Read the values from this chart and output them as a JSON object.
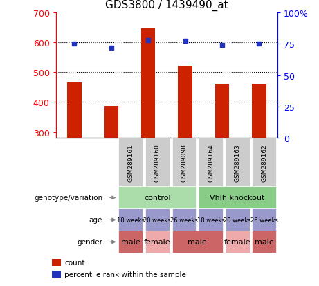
{
  "title": "GDS3800 / 1439490_at",
  "samples": [
    "GSM289161",
    "GSM289160",
    "GSM289098",
    "GSM289164",
    "GSM289163",
    "GSM289162"
  ],
  "counts": [
    465,
    388,
    645,
    522,
    460,
    460
  ],
  "percentiles": [
    75,
    72,
    78,
    77,
    74,
    75
  ],
  "ylim_left": [
    280,
    700
  ],
  "ylim_right": [
    0,
    100
  ],
  "yticks_left": [
    300,
    400,
    500,
    600,
    700
  ],
  "yticks_right": [
    0,
    25,
    50,
    75,
    100
  ],
  "bar_color": "#CC2200",
  "dot_color": "#2233BB",
  "bar_bottom": 280,
  "bar_width": 0.38,
  "genotype_groups": [
    {
      "label": "control",
      "start": 0,
      "end": 2,
      "color": "#AADDAA"
    },
    {
      "label": "Vhlh knockout",
      "start": 3,
      "end": 5,
      "color": "#88CC88"
    }
  ],
  "age": [
    "18 weeks",
    "20 weeks",
    "26 weeks",
    "18 weeks",
    "20 weeks",
    "26 weeks"
  ],
  "age_color": "#9999CC",
  "gender": [
    "male",
    "female",
    "male",
    "male",
    "female",
    "male"
  ],
  "gender_groups": [
    {
      "label": "male",
      "start": 0,
      "end": 0,
      "color": "#CC6666"
    },
    {
      "label": "female",
      "start": 1,
      "end": 1,
      "color": "#EEAAAA"
    },
    {
      "label": "male",
      "start": 2,
      "end": 3,
      "color": "#CC6666"
    },
    {
      "label": "female",
      "start": 4,
      "end": 4,
      "color": "#EEAAAA"
    },
    {
      "label": "male",
      "start": 5,
      "end": 5,
      "color": "#CC6666"
    }
  ],
  "sample_bg": "#CCCCCC",
  "hline_ticks": [
    400,
    500,
    600
  ],
  "row_labels": [
    "genotype/variation",
    "age",
    "gender"
  ],
  "legend_items": [
    {
      "label": "count",
      "color": "#CC2200"
    },
    {
      "label": "percentile rank within the sample",
      "color": "#2233BB"
    }
  ]
}
